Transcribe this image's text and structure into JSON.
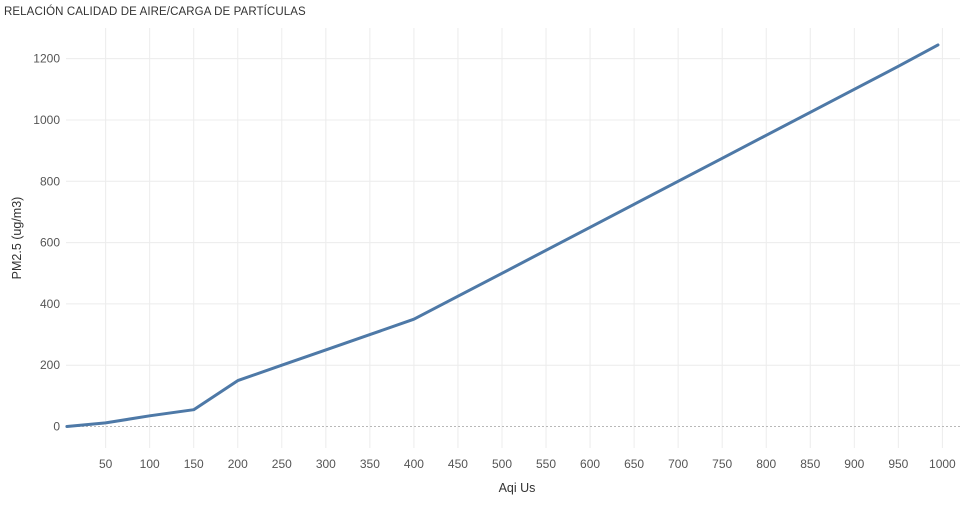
{
  "chart_data": {
    "type": "line",
    "title": "RELACIÓN CALIDAD DE AIRE/CARGA DE PARTÍCULAS",
    "xlabel": "Aqi Us",
    "ylabel": "PM2.5 (ug/m3)",
    "xlim": [
      5,
      1020
    ],
    "ylim": [
      -70,
      1300
    ],
    "x_ticks": [
      50,
      100,
      150,
      200,
      250,
      300,
      350,
      400,
      450,
      500,
      550,
      600,
      650,
      700,
      750,
      800,
      850,
      900,
      950,
      1000
    ],
    "y_ticks": [
      0,
      200,
      400,
      600,
      800,
      1000,
      1200
    ],
    "grid": true,
    "series": [
      {
        "color": "#4e79a7",
        "x": [
          6,
          50,
          100,
          150,
          200,
          250,
          300,
          350,
          400,
          450,
          500,
          550,
          600,
          650,
          700,
          750,
          800,
          850,
          900,
          950,
          995
        ],
        "values": [
          0,
          12,
          35,
          55,
          150,
          200,
          250,
          300,
          350,
          425,
          500,
          575,
          650,
          725,
          800,
          875,
          950,
          1025,
          1100,
          1175,
          1245
        ]
      }
    ]
  }
}
